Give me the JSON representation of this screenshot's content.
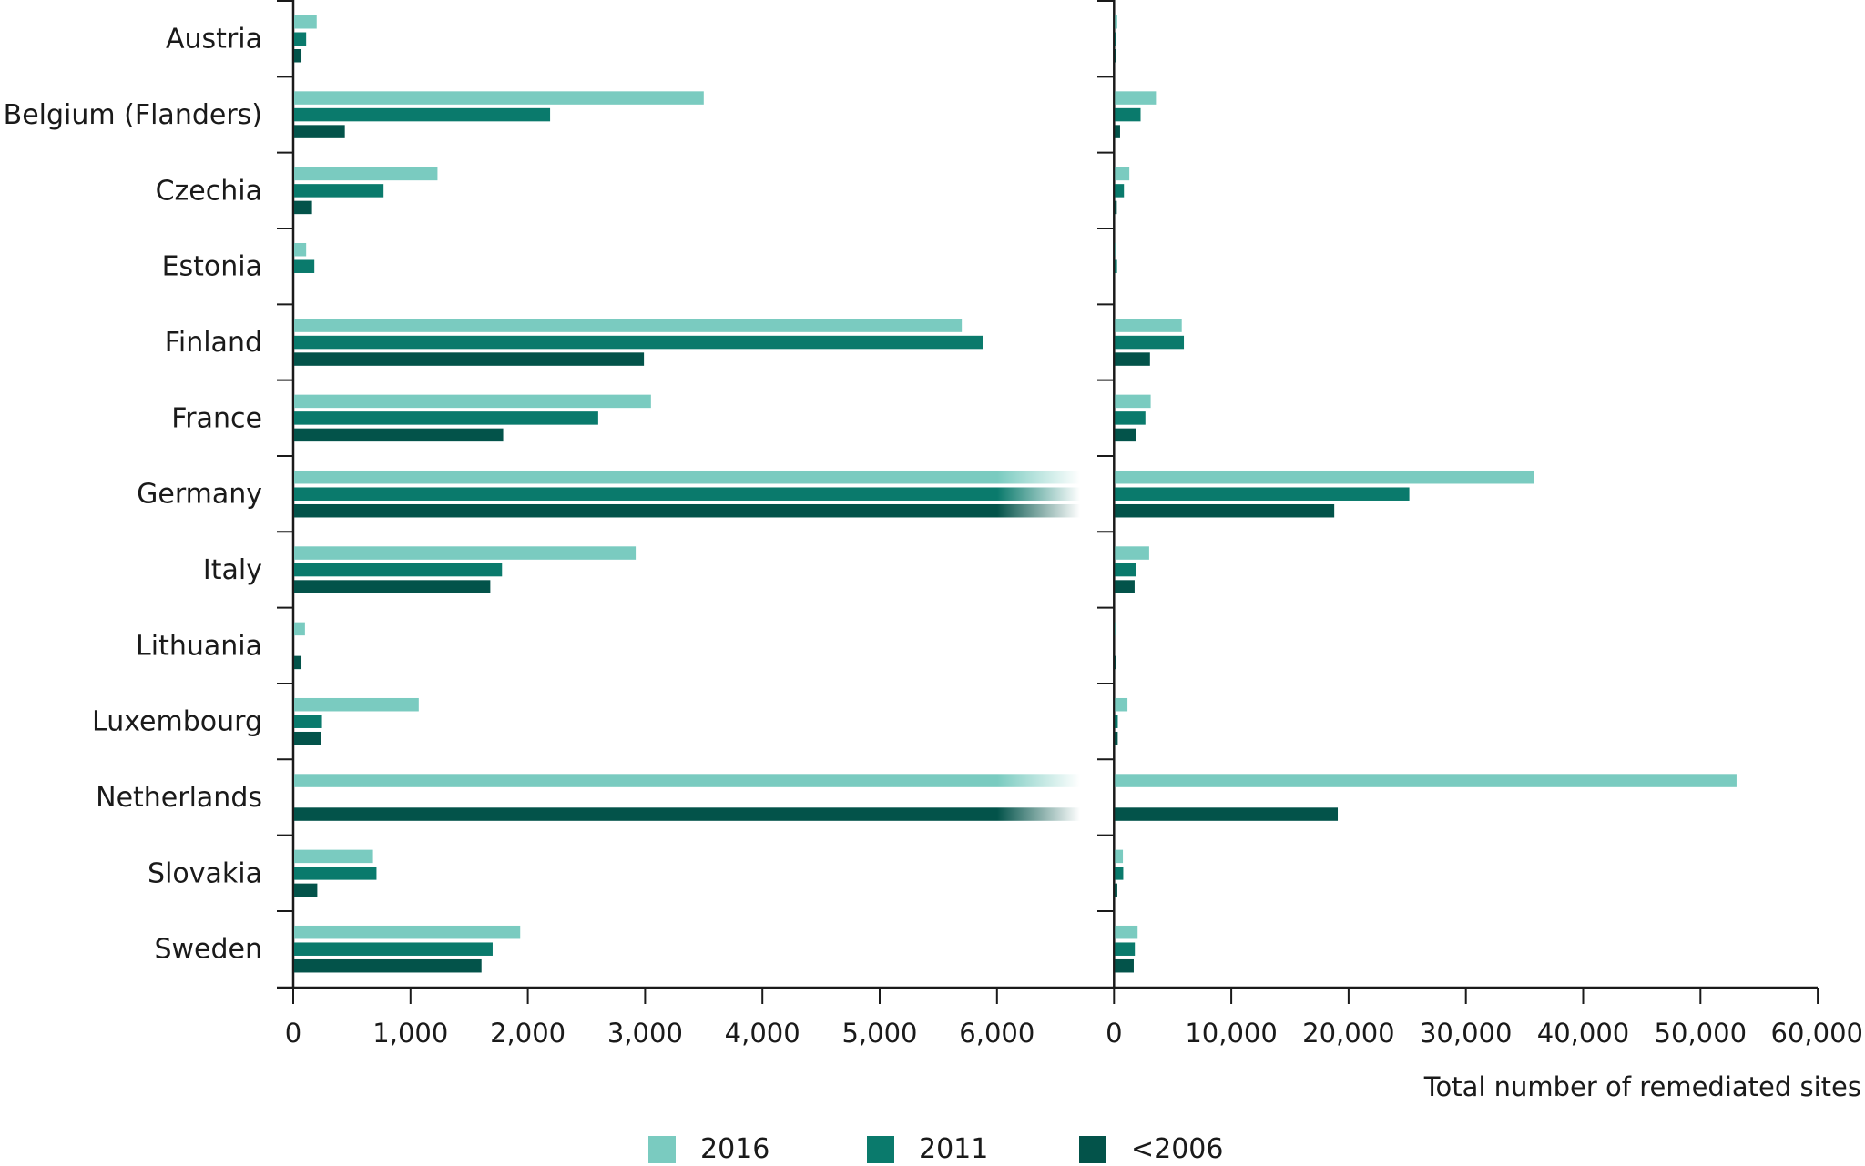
{
  "chart_data": {
    "type": "bar",
    "orientation": "horizontal",
    "categories": [
      "Austria",
      "Belgium (Flanders)",
      "Czechia",
      "Estonia",
      "Finland",
      "France",
      "Germany",
      "Italy",
      "Lithuania",
      "Luxembourg",
      "Netherlands",
      "Slovakia",
      "Sweden"
    ],
    "series": [
      {
        "name": "2016",
        "color": "#7acbc0",
        "values": [
          200,
          3500,
          1230,
          110,
          5700,
          3050,
          35700,
          2920,
          100,
          1070,
          53000,
          680,
          1935
        ]
      },
      {
        "name": "2011",
        "color": "#0a7a6c",
        "values": [
          110,
          2190,
          770,
          180,
          5880,
          2600,
          25100,
          1780,
          null,
          245,
          null,
          710,
          1700
        ]
      },
      {
        "name": "<2006",
        "color": "#03534a",
        "values": [
          70,
          440,
          160,
          null,
          2990,
          1790,
          18700,
          1680,
          70,
          240,
          19000,
          205,
          1605
        ]
      }
    ],
    "panels": [
      {
        "name": "left",
        "xlim": [
          0,
          6700
        ],
        "ticks": [
          0,
          1000,
          2000,
          3000,
          4000,
          5000,
          6000
        ],
        "tick_labels": [
          "0",
          "1,000",
          "2,000",
          "3,000",
          "4,000",
          "5,000",
          "6,000"
        ],
        "broken_above": true
      },
      {
        "name": "right",
        "xlim": [
          0,
          60000
        ],
        "ticks": [
          0,
          10000,
          20000,
          30000,
          40000,
          50000,
          60000
        ],
        "tick_labels": [
          "0",
          "10,000",
          "20,000",
          "30,000",
          "40,000",
          "50,000",
          "60,000"
        ]
      }
    ],
    "xlabel": "Total number of remediated sites",
    "ylabel": "",
    "title": "",
    "grid": false,
    "legend": {
      "placement": "bottom-center",
      "entries": [
        "2016",
        "2011",
        "<2006"
      ]
    }
  }
}
